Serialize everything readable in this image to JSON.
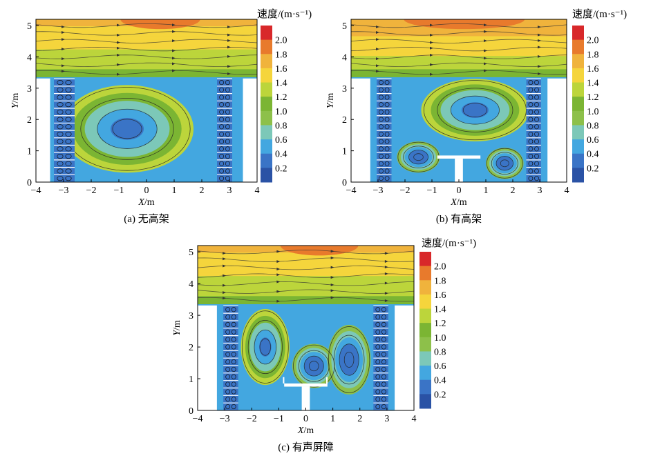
{
  "chart_data": [
    {
      "type": "heatmap",
      "title": "",
      "caption": "(a) 无高架",
      "xlabel": "X/m",
      "ylabel": "Y/m",
      "xlim": [
        -4,
        4
      ],
      "ylim": [
        0,
        5.2
      ],
      "xticks": [
        -4,
        -3,
        -2,
        -1,
        0,
        1,
        2,
        3,
        4
      ],
      "yticks": [
        0,
        1,
        2,
        3,
        4,
        5
      ],
      "colorbar_title": "速度/(m·s⁻¹)",
      "colorbar_levels": [
        0.2,
        0.4,
        0.6,
        0.8,
        1.0,
        1.2,
        1.4,
        1.6,
        1.8,
        2.0
      ],
      "colorbar_labels": [
        "2.0",
        "1.8",
        "1.6",
        "1.4",
        "1.2",
        "1.0",
        "0.8",
        "0.6",
        "0.4",
        "0.2"
      ],
      "buildings": [
        [
          -4,
          -3.5,
          3.3
        ],
        [
          3.5,
          4,
          3.3
        ]
      ],
      "facades": [
        [
          -3.35,
          -2.6,
          3.3
        ],
        [
          2.55,
          3.1,
          3.3
        ]
      ],
      "overpass": null,
      "barriers": [],
      "vortices": [
        {
          "x": -0.7,
          "y": 1.7,
          "rx": 2.4,
          "ry": 1.4
        }
      ],
      "core_velocity": 0.3,
      "ambient_top_velocity": 1.65
    },
    {
      "type": "heatmap",
      "title": "",
      "caption": "(b) 有高架",
      "xlabel": "X/m",
      "ylabel": "Y/m",
      "xlim": [
        -4,
        4
      ],
      "ylim": [
        0,
        5.2
      ],
      "xticks": [
        -4,
        -3,
        -2,
        -1,
        0,
        1,
        2,
        3,
        4
      ],
      "yticks": [
        0,
        1,
        2,
        3,
        4,
        5
      ],
      "colorbar_title": "速度/(m·s⁻¹)",
      "colorbar_levels": [
        0.2,
        0.4,
        0.6,
        0.8,
        1.0,
        1.2,
        1.4,
        1.6,
        1.8,
        2.0
      ],
      "colorbar_labels": [
        "2.0",
        "1.8",
        "1.6",
        "1.4",
        "1.2",
        "1.0",
        "0.8",
        "0.6",
        "0.4",
        "0.2"
      ],
      "buildings": [
        [
          -4,
          -3.3,
          3.3
        ],
        [
          3.3,
          4,
          3.3
        ]
      ],
      "facades": [
        [
          -3.05,
          -2.5,
          3.3
        ],
        [
          2.5,
          3.05,
          3.3
        ]
      ],
      "overpass": {
        "deck_x": [
          -0.8,
          0.8
        ],
        "deck_y": [
          0.75,
          0.85
        ],
        "pier_x": [
          -0.15,
          0.15
        ]
      },
      "barriers": [],
      "vortices": [
        {
          "x": 0.6,
          "y": 2.3,
          "rx": 2.0,
          "ry": 1.0
        },
        {
          "x": -1.5,
          "y": 0.8,
          "rx": 0.8,
          "ry": 0.5
        },
        {
          "x": 1.7,
          "y": 0.6,
          "rx": 0.7,
          "ry": 0.5
        }
      ],
      "core_velocity": 0.35,
      "ambient_top_velocity": 1.75
    },
    {
      "type": "heatmap",
      "title": "",
      "caption": "(c) 有声屏障",
      "xlabel": "X/m",
      "ylabel": "Y/m",
      "xlim": [
        -4,
        4
      ],
      "ylim": [
        0,
        5.2
      ],
      "xticks": [
        -4,
        -3,
        -2,
        -1,
        0,
        1,
        2,
        3,
        4
      ],
      "yticks": [
        0,
        1,
        2,
        3,
        4,
        5
      ],
      "colorbar_title": "速度/(m·s⁻¹)",
      "colorbar_levels": [
        0.2,
        0.4,
        0.6,
        0.8,
        1.0,
        1.2,
        1.4,
        1.6,
        1.8,
        2.0
      ],
      "colorbar_labels": [
        "2.0",
        "1.8",
        "1.6",
        "1.4",
        "1.2",
        "1.0",
        "0.8",
        "0.6",
        "0.4",
        "0.2"
      ],
      "buildings": [
        [
          -4,
          -3.3,
          3.3
        ],
        [
          3.3,
          4,
          3.3
        ]
      ],
      "facades": [
        [
          -3.05,
          -2.5,
          3.3
        ],
        [
          2.5,
          3.05,
          3.3
        ]
      ],
      "overpass": {
        "deck_x": [
          -0.8,
          0.8
        ],
        "deck_y": [
          0.75,
          0.85
        ],
        "pier_x": [
          -0.15,
          0.15
        ]
      },
      "barriers": [
        [
          -0.82,
          0.85,
          1.05
        ],
        [
          0.78,
          0.85,
          1.05
        ]
      ],
      "vortices": [
        {
          "x": -1.5,
          "y": 2.0,
          "rx": 0.9,
          "ry": 1.2
        },
        {
          "x": 0.3,
          "y": 1.4,
          "rx": 0.8,
          "ry": 0.7
        },
        {
          "x": 1.6,
          "y": 1.6,
          "rx": 0.8,
          "ry": 1.1
        }
      ],
      "core_velocity": 0.25,
      "ambient_top_velocity": 1.65
    }
  ],
  "colors": {
    "scale": [
      "#2a52a5",
      "#3a74c6",
      "#43a7e0",
      "#7cc8b8",
      "#8dc04a",
      "#7bb533",
      "#bcd53b",
      "#f5d53c",
      "#f0b33c",
      "#e87a2c",
      "#d8282a"
    ]
  }
}
